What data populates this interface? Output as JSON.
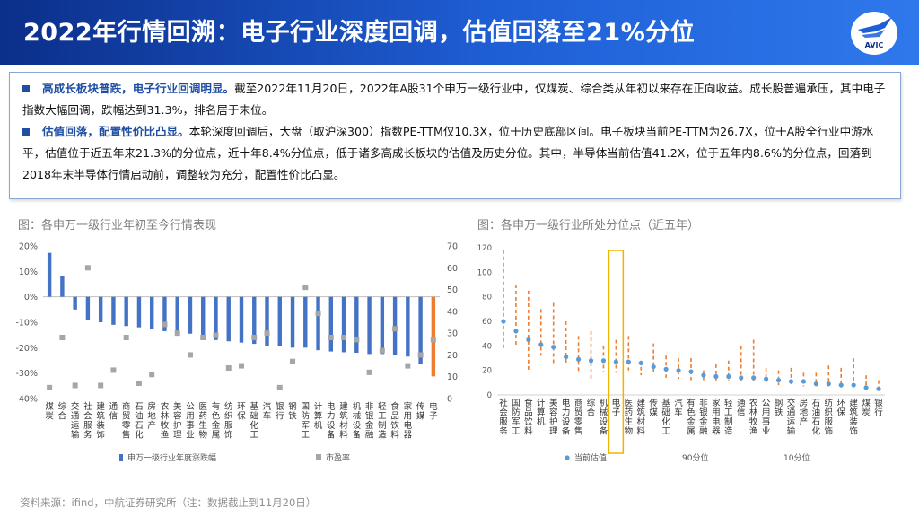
{
  "header": {
    "title": "2022年行情回溯：电子行业深度回调，估值回落至21%分位",
    "logo_text": "AVIC",
    "brand_color": "#1f5fd6"
  },
  "summary": [
    {
      "highlight": "高成长板块普跌，电子行业回调明显。",
      "text": "截至2022年11月20日，2022年A股31个申万一级行业中，仅煤炭、综合类从年初以来存在正向收益。成长股普遍承压，其中电子指数大幅回调，跌幅达到31.3%，排名居于末位。"
    },
    {
      "highlight": "估值回落，配置性价比凸显。",
      "text": "本轮深度回调后，大盘（取沪深300）指数PE-TTM仅10.3X，位于历史底部区间。电子板块当前PE-TTM为26.7X，位于A股全行业中游水平，估值位于近五年来21.3%的分位点，近十年8.4%分位点，低于诸多高成长板块的估值及历史分位。其中，半导体当前估值41.2X，位于五年内8.6%的分位点，回落到2018年末半导体行情启动前，调整较为充分，配置性价比凸显。"
    }
  ],
  "figure_titles": {
    "left": "图：各申万一级行业年初至今行情表现",
    "right": "图：各申万一级行业所处分位点（近五年）"
  },
  "source": "资料来源：ifind，中航证券研究所（注：数据截止到11月20日）",
  "chart_data": [
    {
      "type": "bar",
      "title": "",
      "categories": [
        "煤炭",
        "综合",
        "交通运输",
        "社会服务",
        "建筑装饰",
        "通信",
        "商贸零售",
        "石油石化",
        "房地产",
        "农林牧渔",
        "美容护理",
        "公用事业",
        "医药生物",
        "有色金属",
        "纺织服饰",
        "环保",
        "基础化工",
        "汽车",
        "银行",
        "钢铁",
        "国防军工",
        "计算机",
        "电力设备",
        "建筑材料",
        "机械设备",
        "非银金融",
        "轻工制造",
        "食品饮料",
        "家用电器",
        "传媒",
        "电子"
      ],
      "series": [
        {
          "name": "申万一级行业年度涨跌幅",
          "axis": "left",
          "mark": "bar",
          "unit": "%",
          "values": [
            17.3,
            8.0,
            -5.0,
            -9.0,
            -10.0,
            -11.0,
            -11.5,
            -12.0,
            -12.5,
            -13.5,
            -14.0,
            -14.5,
            -16.5,
            -17.0,
            -17.5,
            -18.0,
            -18.5,
            -19.5,
            -19.5,
            -20.0,
            -20.0,
            -21.0,
            -21.5,
            -21.8,
            -22.0,
            -22.5,
            -22.5,
            -23.0,
            -23.5,
            -26.5,
            -31.3
          ],
          "highlight_color": "#ed7d31",
          "color": "#4472c4"
        },
        {
          "name": "市盈率",
          "axis": "right",
          "mark": "point",
          "color": "#a6a6a6",
          "values": [
            5,
            28,
            6,
            60,
            6,
            13,
            28,
            7,
            11,
            34,
            30,
            20,
            28,
            29,
            14,
            15,
            28,
            30,
            5,
            17,
            51,
            39,
            28,
            28,
            27,
            12,
            22,
            32,
            15,
            20,
            27
          ]
        }
      ],
      "y_left": {
        "ylim": [
          -40,
          20
        ],
        "ticks": [
          "20%",
          "10%",
          "0%",
          "-10%",
          "-20%",
          "-30%",
          "-40%"
        ]
      },
      "y_right": {
        "ylim": [
          0,
          70
        ],
        "ticks": [
          "70",
          "60",
          "50",
          "40",
          "30",
          "20",
          "10",
          "0"
        ]
      },
      "legend": "bottom"
    },
    {
      "type": "scatter",
      "title": "",
      "categories": [
        "社会服务",
        "国防军工",
        "食品饮料",
        "计算机",
        "美容护理",
        "电力设备",
        "商贸零售",
        "综合",
        "机械设备",
        "电子",
        "医药生物",
        "建筑材料",
        "传媒",
        "基础化工",
        "汽车",
        "有色金属",
        "非银金融",
        "家用电器",
        "轻工制造",
        "通信",
        "农林牧渔",
        "公用事业",
        "钢铁",
        "交通运输",
        "房地产",
        "石油石化",
        "纺织服饰",
        "环保",
        "建筑装饰",
        "煤炭",
        "银行"
      ],
      "highlight_category": "电子",
      "series": [
        {
          "name": "当前估值",
          "mark": "point",
          "color": "#5b9bd5",
          "values": [
            60,
            52,
            45,
            41,
            39,
            31,
            29,
            28,
            28,
            27,
            27,
            26,
            23,
            21,
            20,
            19,
            16,
            15,
            15,
            14,
            14,
            13,
            12,
            11,
            11,
            9,
            9,
            8,
            8,
            6,
            5
          ]
        },
        {
          "name": "90分位",
          "mark": "dash-top",
          "color": "#ed7d31",
          "values": [
            118,
            90,
            85,
            70,
            75,
            60,
            48,
            52,
            40,
            45,
            48,
            28,
            42,
            32,
            30,
            30,
            20,
            25,
            28,
            40,
            45,
            22,
            20,
            22,
            18,
            18,
            24,
            22,
            30,
            16,
            12
          ]
        },
        {
          "name": "10分位",
          "mark": "dash-bottom",
          "color": "#ed7d31",
          "values": [
            38,
            40,
            20,
            32,
            26,
            26,
            18,
            12,
            19,
            18,
            20,
            16,
            18,
            14,
            13,
            12,
            10,
            10,
            12,
            11,
            10,
            10,
            8,
            8,
            7,
            7,
            7,
            6,
            5,
            5,
            4
          ]
        }
      ],
      "y": {
        "ylim": [
          0,
          120
        ],
        "ticks": [
          "120",
          "100",
          "80",
          "60",
          "40",
          "20",
          "0"
        ]
      },
      "legend": "bottom"
    }
  ]
}
